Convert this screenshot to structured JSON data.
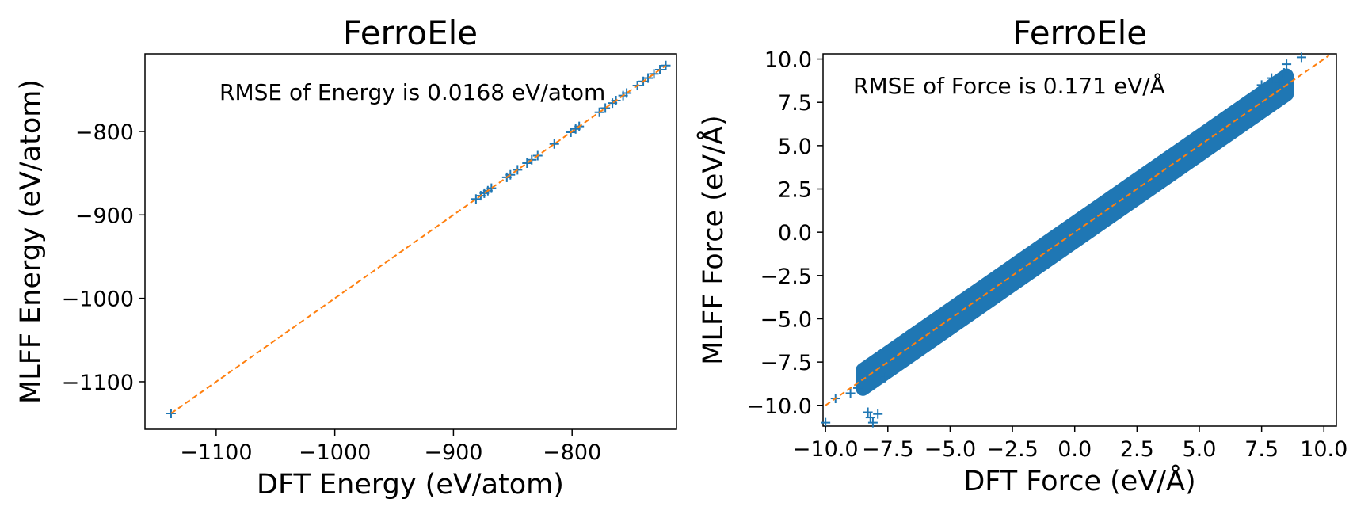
{
  "chart_data": [
    {
      "type": "scatter",
      "title": "FerroEle",
      "xlabel": "DFT Energy (eV/atom)",
      "ylabel": "MLFF Energy (eV/atom)",
      "annotation": "RMSE of Energy is 0.0168 eV/atom",
      "xlim": [
        -1160,
        -712
      ],
      "ylim": [
        -1157,
        -707
      ],
      "xticks": [
        -1100,
        -1000,
        -900,
        -800
      ],
      "yticks": [
        -1100,
        -1000,
        -900,
        -800
      ],
      "xtick_labels": [
        "−1100",
        "−1000",
        "−900",
        "−800"
      ],
      "ytick_labels": [
        "−1100",
        "−1000",
        "−900",
        "−800"
      ],
      "grid": false,
      "colors": {
        "points": "#1f77b4",
        "reference": "#ff7f0e"
      },
      "reference_line": {
        "x": [
          -1138,
          -721
        ],
        "y": [
          -1138,
          -721
        ]
      },
      "points": {
        "x": [
          -1138,
          -881,
          -877,
          -874,
          -871,
          -868,
          -855,
          -852,
          -846,
          -838,
          -834,
          -829,
          -815,
          -801,
          -797,
          -794,
          -777,
          -772,
          -766,
          -763,
          -757,
          -754,
          -745,
          -740,
          -736,
          -731,
          -726,
          -721
        ],
        "y": [
          -1138,
          -881,
          -877,
          -874,
          -871,
          -868,
          -855,
          -852,
          -846,
          -838,
          -834,
          -829,
          -815,
          -801,
          -797,
          -794,
          -777,
          -772,
          -766,
          -763,
          -757,
          -754,
          -745,
          -740,
          -736,
          -731,
          -726,
          -721
        ]
      }
    },
    {
      "type": "scatter",
      "title": "FerroEle",
      "xlabel": "DFT Force (eV/Å)",
      "ylabel": "MLFF Force (eV/Å)",
      "annotation": "RMSE of Force is 0.171 eV/Å",
      "xlim": [
        -10.1,
        10.5
      ],
      "ylim": [
        -11.2,
        10.3
      ],
      "xticks": [
        -10,
        -7.5,
        -5,
        -2.5,
        0,
        2.5,
        5,
        7.5,
        10
      ],
      "yticks": [
        -10,
        -7.5,
        -5,
        -2.5,
        0,
        2.5,
        5,
        7.5,
        10
      ],
      "xtick_labels": [
        "−10.0",
        "−7.5",
        "−5.0",
        "−2.5",
        "0.0",
        "2.5",
        "5.0",
        "7.5",
        "10.0"
      ],
      "ytick_labels": [
        "−10.0",
        "−7.5",
        "−5.0",
        "−2.5",
        "0.0",
        "2.5",
        "5.0",
        "7.5",
        "10.0"
      ],
      "grid": false,
      "colors": {
        "points": "#1f77b4",
        "reference": "#ff7f0e"
      },
      "reference_line": {
        "x": [
          -10.0,
          10.2
        ],
        "y": [
          -10.0,
          10.2
        ]
      },
      "point_cloud": {
        "x_range": [
          -8.5,
          8.5
        ],
        "slope": 1.0,
        "half_width": 0.9
      },
      "points": {
        "x": [
          -10.0,
          -9.6,
          -9.0,
          -8.7,
          -8.3,
          -8.2,
          -8.1,
          -7.9,
          -7.6,
          7.5,
          7.9,
          8.2,
          8.4,
          8.5,
          9.1
        ],
        "y": [
          -11.0,
          -9.6,
          -9.3,
          -9.0,
          -10.4,
          -10.7,
          -11.0,
          -10.5,
          -8.4,
          8.5,
          8.9,
          8.6,
          9.2,
          9.7,
          10.1
        ]
      }
    }
  ]
}
